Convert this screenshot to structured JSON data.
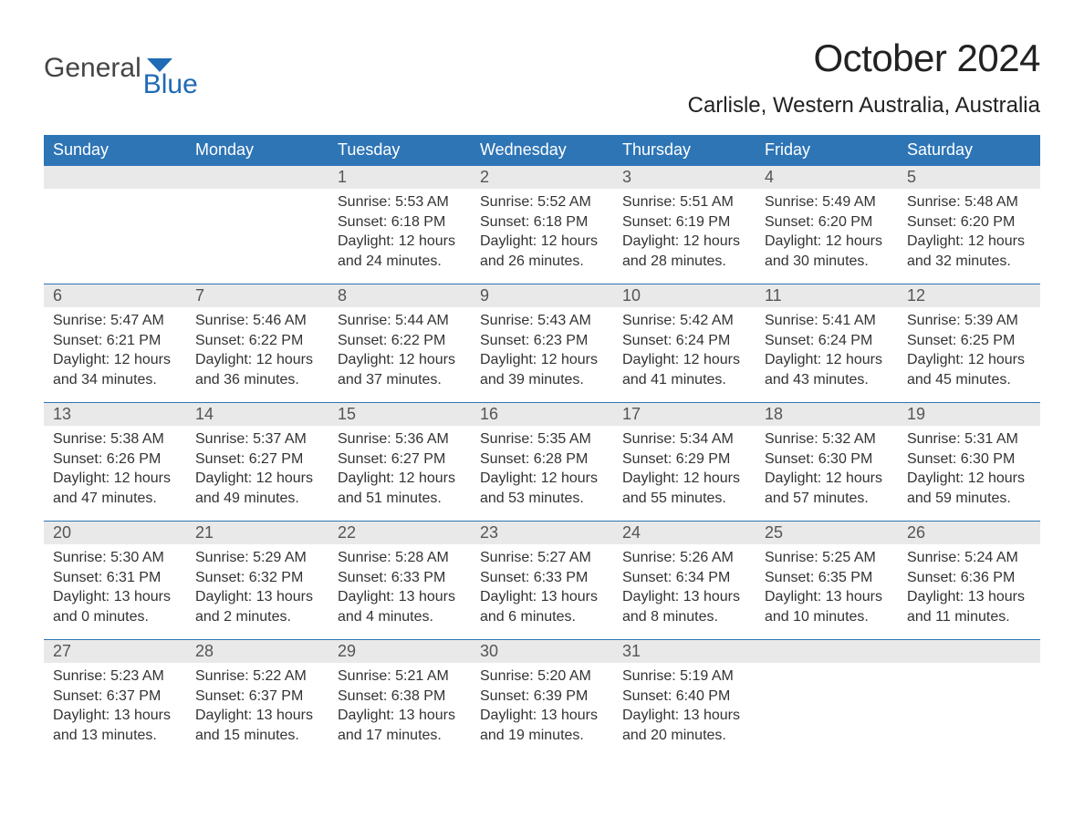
{
  "logo": {
    "text_a": "General",
    "text_b": "Blue"
  },
  "title": "October 2024",
  "location": "Carlisle, Western Australia, Australia",
  "colors": {
    "header_bg": "#2e75b6",
    "header_fg": "#ffffff",
    "daynum_bg": "#e9e9e9",
    "daynum_fg": "#555555",
    "border": "#2e75b6",
    "logo_blue": "#1f6bb5",
    "logo_gray": "#454545",
    "body_text": "#333333",
    "background": "#ffffff"
  },
  "typography": {
    "font_family": "Arial, Helvetica, sans-serif",
    "title_fontsize": 42,
    "location_fontsize": 24,
    "header_fontsize": 18,
    "daynum_fontsize": 18,
    "body_fontsize": 16
  },
  "day_headers": [
    "Sunday",
    "Monday",
    "Tuesday",
    "Wednesday",
    "Thursday",
    "Friday",
    "Saturday"
  ],
  "weeks": [
    [
      {
        "day": "",
        "sunrise": "",
        "sunset": "",
        "daylight1": "",
        "daylight2": ""
      },
      {
        "day": "",
        "sunrise": "",
        "sunset": "",
        "daylight1": "",
        "daylight2": ""
      },
      {
        "day": "1",
        "sunrise": "Sunrise: 5:53 AM",
        "sunset": "Sunset: 6:18 PM",
        "daylight1": "Daylight: 12 hours",
        "daylight2": "and 24 minutes."
      },
      {
        "day": "2",
        "sunrise": "Sunrise: 5:52 AM",
        "sunset": "Sunset: 6:18 PM",
        "daylight1": "Daylight: 12 hours",
        "daylight2": "and 26 minutes."
      },
      {
        "day": "3",
        "sunrise": "Sunrise: 5:51 AM",
        "sunset": "Sunset: 6:19 PM",
        "daylight1": "Daylight: 12 hours",
        "daylight2": "and 28 minutes."
      },
      {
        "day": "4",
        "sunrise": "Sunrise: 5:49 AM",
        "sunset": "Sunset: 6:20 PM",
        "daylight1": "Daylight: 12 hours",
        "daylight2": "and 30 minutes."
      },
      {
        "day": "5",
        "sunrise": "Sunrise: 5:48 AM",
        "sunset": "Sunset: 6:20 PM",
        "daylight1": "Daylight: 12 hours",
        "daylight2": "and 32 minutes."
      }
    ],
    [
      {
        "day": "6",
        "sunrise": "Sunrise: 5:47 AM",
        "sunset": "Sunset: 6:21 PM",
        "daylight1": "Daylight: 12 hours",
        "daylight2": "and 34 minutes."
      },
      {
        "day": "7",
        "sunrise": "Sunrise: 5:46 AM",
        "sunset": "Sunset: 6:22 PM",
        "daylight1": "Daylight: 12 hours",
        "daylight2": "and 36 minutes."
      },
      {
        "day": "8",
        "sunrise": "Sunrise: 5:44 AM",
        "sunset": "Sunset: 6:22 PM",
        "daylight1": "Daylight: 12 hours",
        "daylight2": "and 37 minutes."
      },
      {
        "day": "9",
        "sunrise": "Sunrise: 5:43 AM",
        "sunset": "Sunset: 6:23 PM",
        "daylight1": "Daylight: 12 hours",
        "daylight2": "and 39 minutes."
      },
      {
        "day": "10",
        "sunrise": "Sunrise: 5:42 AM",
        "sunset": "Sunset: 6:24 PM",
        "daylight1": "Daylight: 12 hours",
        "daylight2": "and 41 minutes."
      },
      {
        "day": "11",
        "sunrise": "Sunrise: 5:41 AM",
        "sunset": "Sunset: 6:24 PM",
        "daylight1": "Daylight: 12 hours",
        "daylight2": "and 43 minutes."
      },
      {
        "day": "12",
        "sunrise": "Sunrise: 5:39 AM",
        "sunset": "Sunset: 6:25 PM",
        "daylight1": "Daylight: 12 hours",
        "daylight2": "and 45 minutes."
      }
    ],
    [
      {
        "day": "13",
        "sunrise": "Sunrise: 5:38 AM",
        "sunset": "Sunset: 6:26 PM",
        "daylight1": "Daylight: 12 hours",
        "daylight2": "and 47 minutes."
      },
      {
        "day": "14",
        "sunrise": "Sunrise: 5:37 AM",
        "sunset": "Sunset: 6:27 PM",
        "daylight1": "Daylight: 12 hours",
        "daylight2": "and 49 minutes."
      },
      {
        "day": "15",
        "sunrise": "Sunrise: 5:36 AM",
        "sunset": "Sunset: 6:27 PM",
        "daylight1": "Daylight: 12 hours",
        "daylight2": "and 51 minutes."
      },
      {
        "day": "16",
        "sunrise": "Sunrise: 5:35 AM",
        "sunset": "Sunset: 6:28 PM",
        "daylight1": "Daylight: 12 hours",
        "daylight2": "and 53 minutes."
      },
      {
        "day": "17",
        "sunrise": "Sunrise: 5:34 AM",
        "sunset": "Sunset: 6:29 PM",
        "daylight1": "Daylight: 12 hours",
        "daylight2": "and 55 minutes."
      },
      {
        "day": "18",
        "sunrise": "Sunrise: 5:32 AM",
        "sunset": "Sunset: 6:30 PM",
        "daylight1": "Daylight: 12 hours",
        "daylight2": "and 57 minutes."
      },
      {
        "day": "19",
        "sunrise": "Sunrise: 5:31 AM",
        "sunset": "Sunset: 6:30 PM",
        "daylight1": "Daylight: 12 hours",
        "daylight2": "and 59 minutes."
      }
    ],
    [
      {
        "day": "20",
        "sunrise": "Sunrise: 5:30 AM",
        "sunset": "Sunset: 6:31 PM",
        "daylight1": "Daylight: 13 hours",
        "daylight2": "and 0 minutes."
      },
      {
        "day": "21",
        "sunrise": "Sunrise: 5:29 AM",
        "sunset": "Sunset: 6:32 PM",
        "daylight1": "Daylight: 13 hours",
        "daylight2": "and 2 minutes."
      },
      {
        "day": "22",
        "sunrise": "Sunrise: 5:28 AM",
        "sunset": "Sunset: 6:33 PM",
        "daylight1": "Daylight: 13 hours",
        "daylight2": "and 4 minutes."
      },
      {
        "day": "23",
        "sunrise": "Sunrise: 5:27 AM",
        "sunset": "Sunset: 6:33 PM",
        "daylight1": "Daylight: 13 hours",
        "daylight2": "and 6 minutes."
      },
      {
        "day": "24",
        "sunrise": "Sunrise: 5:26 AM",
        "sunset": "Sunset: 6:34 PM",
        "daylight1": "Daylight: 13 hours",
        "daylight2": "and 8 minutes."
      },
      {
        "day": "25",
        "sunrise": "Sunrise: 5:25 AM",
        "sunset": "Sunset: 6:35 PM",
        "daylight1": "Daylight: 13 hours",
        "daylight2": "and 10 minutes."
      },
      {
        "day": "26",
        "sunrise": "Sunrise: 5:24 AM",
        "sunset": "Sunset: 6:36 PM",
        "daylight1": "Daylight: 13 hours",
        "daylight2": "and 11 minutes."
      }
    ],
    [
      {
        "day": "27",
        "sunrise": "Sunrise: 5:23 AM",
        "sunset": "Sunset: 6:37 PM",
        "daylight1": "Daylight: 13 hours",
        "daylight2": "and 13 minutes."
      },
      {
        "day": "28",
        "sunrise": "Sunrise: 5:22 AM",
        "sunset": "Sunset: 6:37 PM",
        "daylight1": "Daylight: 13 hours",
        "daylight2": "and 15 minutes."
      },
      {
        "day": "29",
        "sunrise": "Sunrise: 5:21 AM",
        "sunset": "Sunset: 6:38 PM",
        "daylight1": "Daylight: 13 hours",
        "daylight2": "and 17 minutes."
      },
      {
        "day": "30",
        "sunrise": "Sunrise: 5:20 AM",
        "sunset": "Sunset: 6:39 PM",
        "daylight1": "Daylight: 13 hours",
        "daylight2": "and 19 minutes."
      },
      {
        "day": "31",
        "sunrise": "Sunrise: 5:19 AM",
        "sunset": "Sunset: 6:40 PM",
        "daylight1": "Daylight: 13 hours",
        "daylight2": "and 20 minutes."
      },
      {
        "day": "",
        "sunrise": "",
        "sunset": "",
        "daylight1": "",
        "daylight2": ""
      },
      {
        "day": "",
        "sunrise": "",
        "sunset": "",
        "daylight1": "",
        "daylight2": ""
      }
    ]
  ]
}
